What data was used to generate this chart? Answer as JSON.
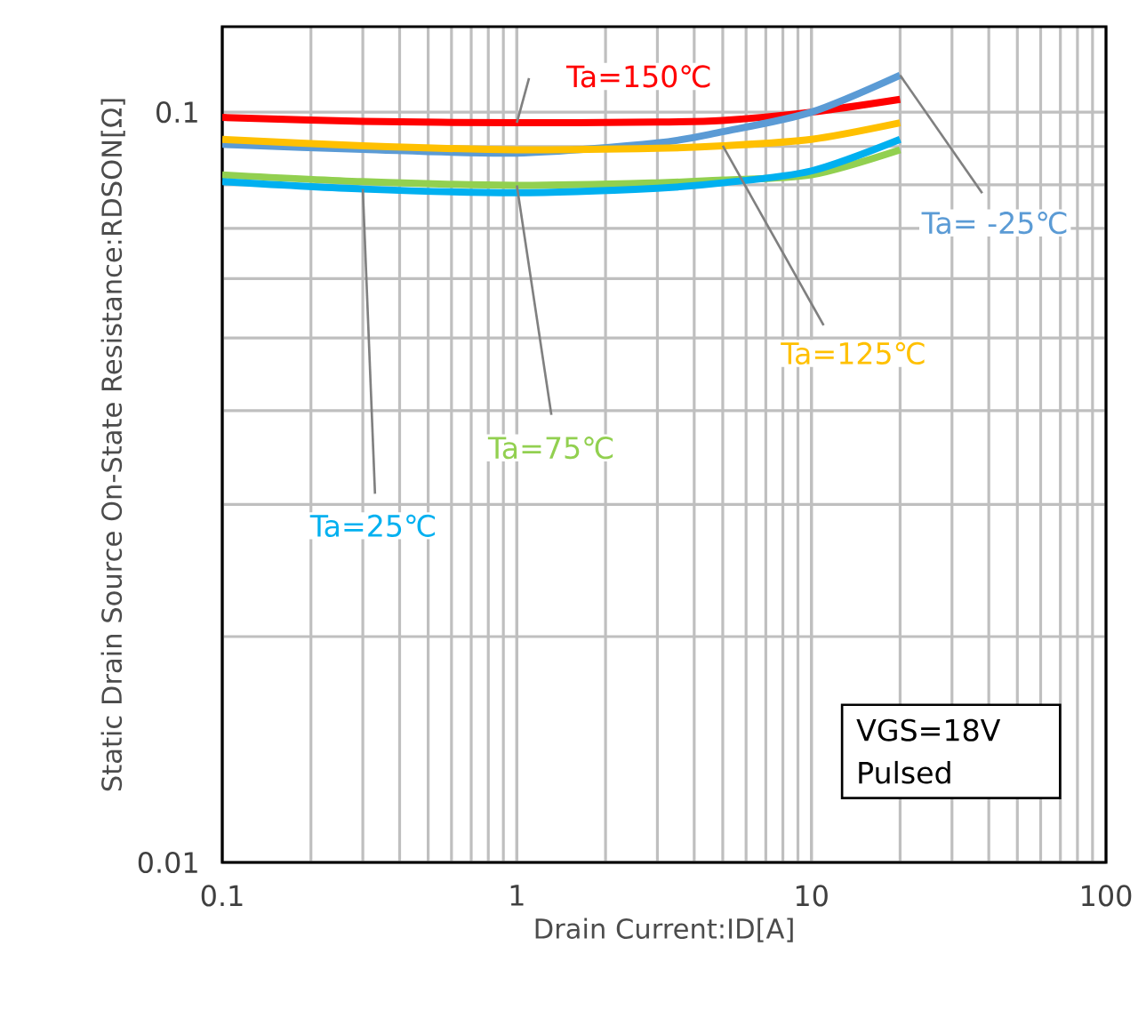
{
  "chart_data": {
    "type": "line",
    "xlabel": "Drain Current:ID[A]",
    "ylabel": "Static Drain Source On-State Resistance:RDSON[Ω]",
    "x": [
      0.1,
      0.3,
      1,
      3,
      5,
      10,
      20
    ],
    "series": [
      {
        "name": "Ta=150℃",
        "color": "#ff0000",
        "values": [
          0.0984,
          0.0972,
          0.0968,
          0.097,
          0.0975,
          0.1,
          0.104
        ]
      },
      {
        "name": "Ta= -25℃",
        "color": "#5b9bd5",
        "values": [
          0.0906,
          0.0892,
          0.0882,
          0.091,
          0.0942,
          0.1,
          0.112
        ]
      },
      {
        "name": "Ta=125℃",
        "color": "#ffc000",
        "values": [
          0.092,
          0.0902,
          0.0891,
          0.0895,
          0.0902,
          0.092,
          0.0968
        ]
      },
      {
        "name": "Ta=75℃",
        "color": "#92d050",
        "values": [
          0.0825,
          0.0808,
          0.0799,
          0.0805,
          0.0812,
          0.0825,
          0.0891
        ]
      },
      {
        "name": "Ta=25℃",
        "color": "#00b0f0",
        "values": [
          0.0808,
          0.079,
          0.0781,
          0.0792,
          0.0805,
          0.0835,
          0.092
        ]
      }
    ],
    "xlim": [
      0.1,
      100
    ],
    "ylim": [
      0.01,
      0.13
    ],
    "xticks": [
      0.1,
      1,
      10,
      100
    ],
    "yticks": [
      0.01,
      0.1
    ],
    "log": "xy",
    "grid": true,
    "marker": "none",
    "line_style": "solid",
    "annotations": [
      "VGS=18V",
      "Pulsed"
    ]
  }
}
